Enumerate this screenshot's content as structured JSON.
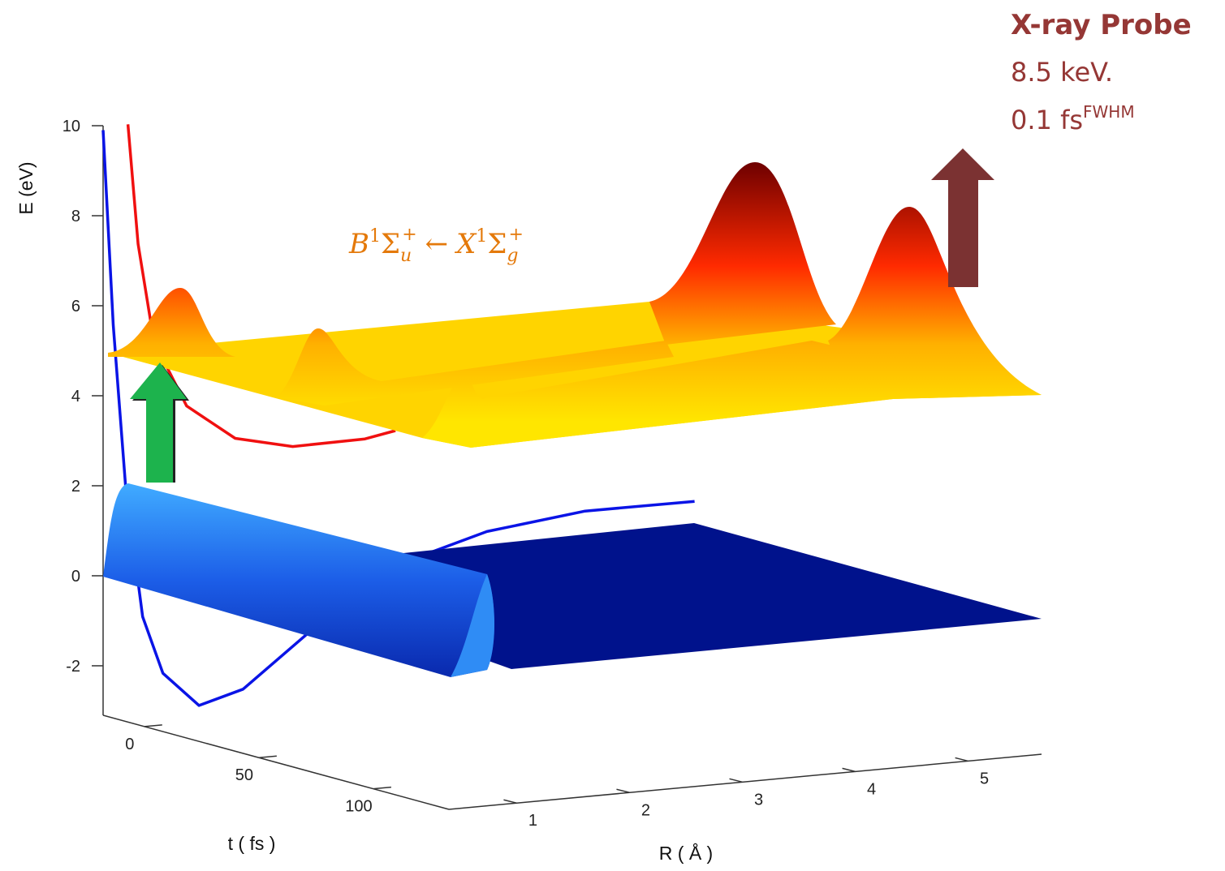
{
  "chart_data": {
    "type": "line3d",
    "xlabel": "R ( Å )",
    "ylabel": "t ( fs )",
    "zlabel": "E (eV)",
    "xlim": [
      0.4,
      5.65
    ],
    "ylim": [
      -18,
      133
    ],
    "zlim": [
      -3.1,
      10
    ],
    "xticks": [
      1,
      2,
      3,
      4,
      5
    ],
    "yticks": [
      0,
      50,
      100
    ],
    "zticks": [
      -2,
      0,
      2,
      4,
      6,
      8,
      10
    ],
    "series": [
      {
        "color": "#0a14e6",
        "x": [
          0.4,
          0.49,
          0.6,
          0.75,
          0.93,
          1.25,
          1.64,
          2.22,
          2.94,
          3.8,
          4.67,
          5.64
        ],
        "values": [
          9.9,
          5.55,
          1.92,
          -0.99,
          -2.29,
          -3.08,
          -2.81,
          -1.69,
          -0.41,
          0.19,
          0.44,
          0.43
        ]
      },
      {
        "color": "#f01010",
        "x": [
          0.62,
          0.71,
          0.85,
          1.14,
          1.57,
          2.08,
          2.72,
          2.99
        ],
        "values": [
          9.98,
          7.3,
          5.1,
          3.6,
          2.78,
          2.48,
          2.5,
          2.62
        ]
      }
    ],
    "transition": {
      "upper": {
        "letter": "B",
        "multiplicity": "1",
        "symbol": "Σ",
        "parity": "u",
        "sign": "+"
      },
      "arrow": "←",
      "lower": {
        "letter": "X",
        "multiplicity": "1",
        "symbol": "Σ",
        "parity": "g",
        "sign": "+"
      }
    },
    "probe": {
      "title": "X-ray Probe",
      "energy": "8.5 keV.",
      "duration": "0.1 fs",
      "duration_sup": "FWHM"
    }
  }
}
